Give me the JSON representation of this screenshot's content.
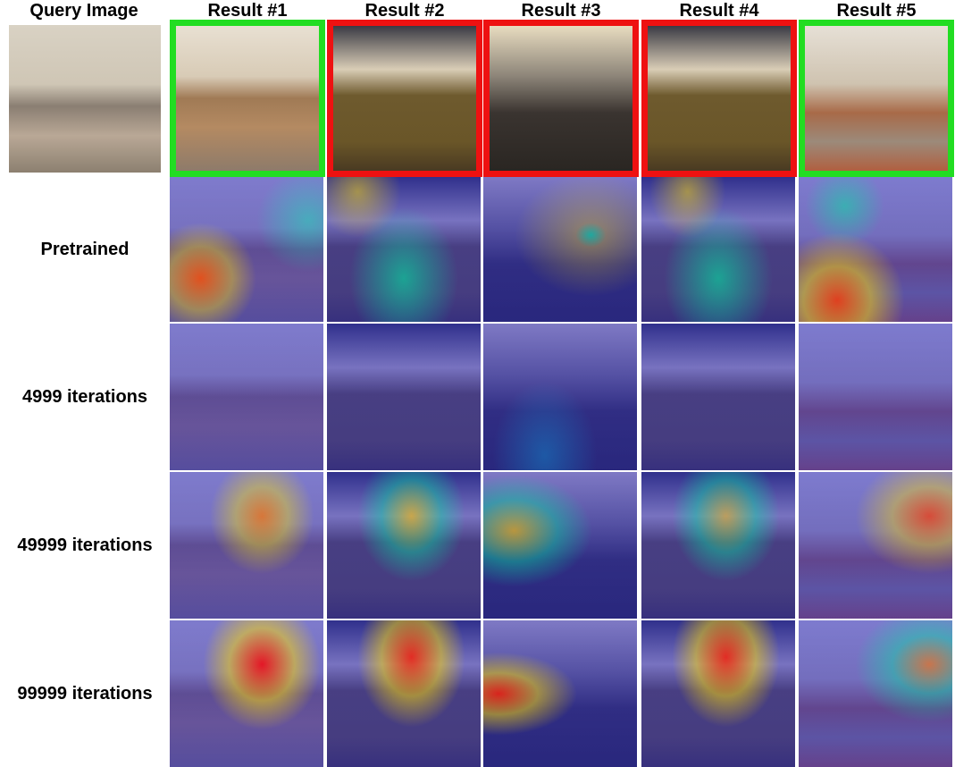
{
  "figure": {
    "query_header": "Query Image",
    "results": [
      {
        "label": "Result #1",
        "border": "#22dd22"
      },
      {
        "label": "Result #2",
        "border": "#ee1111"
      },
      {
        "label": "Result #3",
        "border": "#ee1111"
      },
      {
        "label": "Result #4",
        "border": "#ee1111"
      },
      {
        "label": "Result #5",
        "border": "#22dd22"
      }
    ],
    "rows": [
      "Pretrained",
      "4999 iterations",
      "49999 iterations",
      "99999 iterations"
    ]
  }
}
